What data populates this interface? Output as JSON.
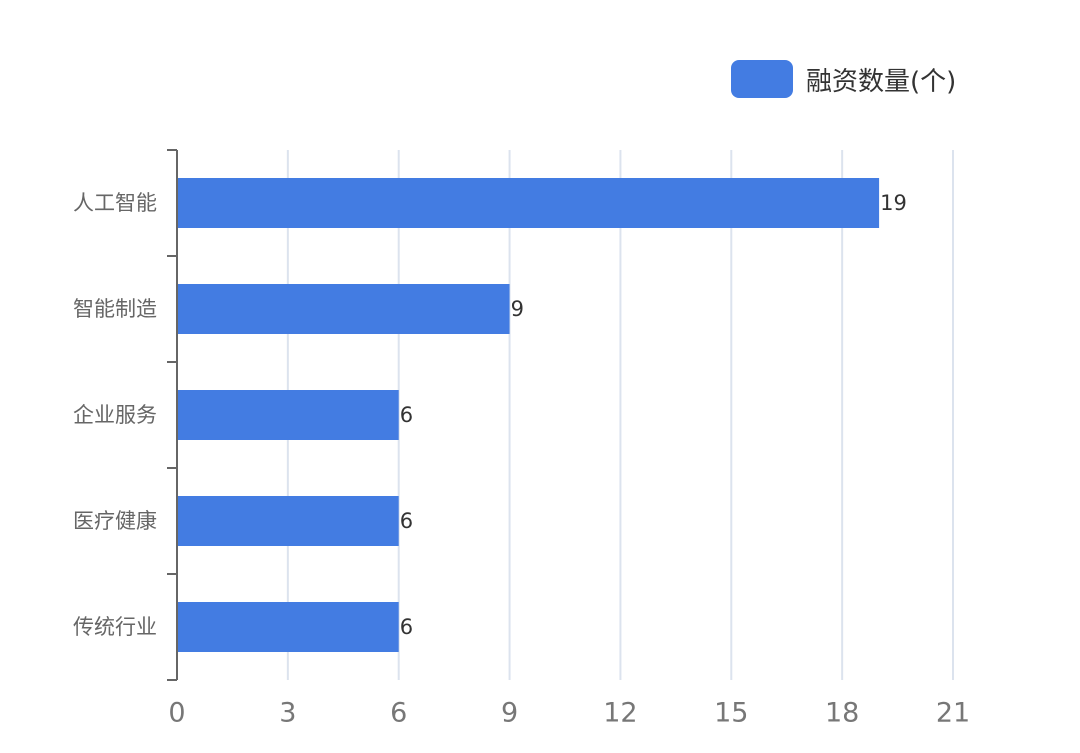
{
  "chart_data": {
    "type": "bar",
    "orientation": "horizontal",
    "categories": [
      "人工智能",
      "智能制造",
      "企业服务",
      "医疗健康",
      "传统行业"
    ],
    "series": [
      {
        "name": "融资数量(个)",
        "values": [
          19,
          9,
          6,
          6,
          6
        ],
        "color": "#437CE2"
      }
    ],
    "xlim": [
      0,
      21
    ],
    "xticks": [
      0,
      3,
      6,
      9,
      12,
      15,
      18,
      21
    ],
    "grid": true,
    "legend_position": "top-right",
    "show_value_labels": true
  },
  "colors": {
    "bar": "#437CE2",
    "grid": "#DCE3EE",
    "axis": "#666666"
  }
}
